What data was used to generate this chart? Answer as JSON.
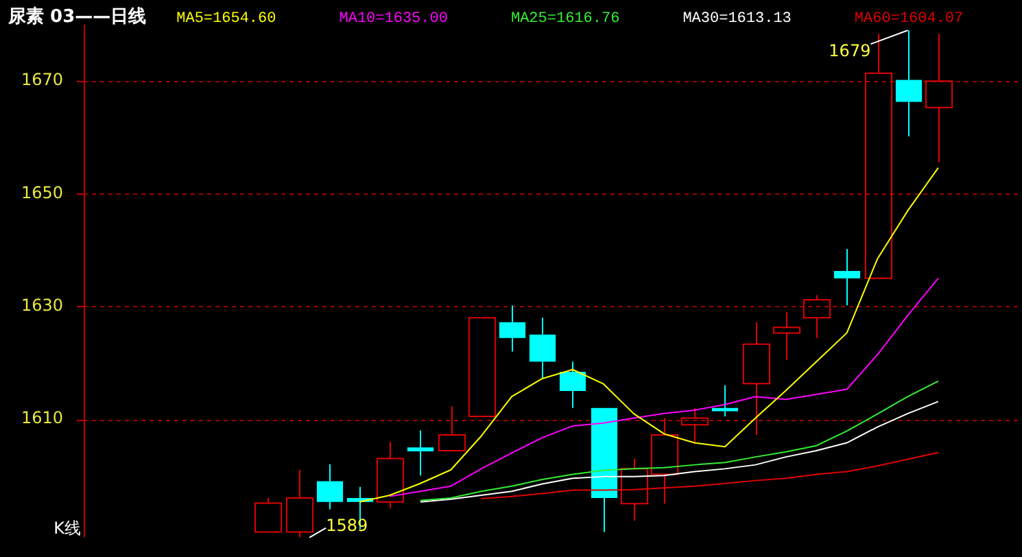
{
  "chart_data": {
    "type": "candlestick",
    "title": "尿素 03——日线",
    "categories": [
      null,
      null,
      null,
      null,
      null,
      null,
      null,
      null,
      null,
      null,
      null,
      null,
      null,
      null,
      null,
      null,
      null,
      null,
      null,
      null,
      null,
      null,
      null
    ],
    "ohlc": [
      [
        1590,
        1596,
        1590,
        1595.1
      ],
      [
        1590,
        1601,
        1589,
        1596
      ],
      [
        1599,
        1602,
        1594,
        1595.3
      ],
      [
        1596,
        1598,
        1590.5,
        1595.3
      ],
      [
        1595.3,
        1606,
        1594.2,
        1603
      ],
      [
        1605,
        1608,
        1600,
        1604.3
      ],
      [
        1604.4,
        1612.3,
        1604.4,
        1607.2
      ],
      [
        1610.5,
        1628,
        1610.5,
        1628
      ],
      [
        1627.2,
        1630.2,
        1622,
        1624.4
      ],
      [
        1625,
        1628,
        1617.2,
        1620.2
      ],
      [
        1618.4,
        1620.2,
        1612,
        1615
      ],
      [
        1612,
        1612,
        1590,
        1596
      ],
      [
        1595,
        1603,
        1592,
        1601.2
      ],
      [
        1600.2,
        1610.2,
        1595,
        1607.2
      ],
      [
        1609,
        1612,
        1605.6,
        1610.2
      ],
      [
        1612,
        1616,
        1610.5,
        1611.4
      ],
      [
        1616.3,
        1627.2,
        1607.2,
        1623.3
      ],
      [
        1625.3,
        1629,
        1620.5,
        1626.3
      ],
      [
        1628,
        1632,
        1624.4,
        1631.2
      ],
      [
        1636.3,
        1640.2,
        1630.2,
        1635
      ],
      [
        1635,
        1678.4,
        1635,
        1671.4
      ],
      [
        1670.2,
        1679,
        1660.2,
        1666.3
      ],
      [
        1665.3,
        1678.4,
        1655.6,
        1670
      ]
    ],
    "colors": [
      "#e00000",
      "#e00000",
      "#00ffff",
      "#00ffff",
      "#e00000",
      "#00ffff",
      "#e00000",
      "#e00000",
      "#00ffff",
      "#00ffff",
      "#00ffff",
      "#00ffff",
      "#e00000",
      "#e00000",
      "#e00000",
      "#00ffff",
      "#e00000",
      "#e00000",
      "#e00000",
      "#00ffff",
      "#e00000",
      "#00ffff",
      "#e00000"
    ],
    "series": [
      {
        "name": "MA5=1654.60",
        "type": "line",
        "color": "#ffff00",
        "values": [
          null,
          null,
          null,
          1595.3,
          1596.5,
          1598.6,
          1601,
          1607,
          1614,
          1617.2,
          1618.8,
          1616.3,
          1611,
          1607.4,
          1605.8,
          1605.1,
          1610.2,
          1615.1,
          1620.2,
          1625.3,
          1638.4,
          1647,
          1654.6
        ]
      },
      {
        "name": "MA10=1635.00",
        "type": "line",
        "color": "#ff00ff",
        "values": [
          null,
          null,
          null,
          null,
          1596.3,
          1597.2,
          1598.1,
          1601.2,
          1604,
          1606.7,
          1608.8,
          1609.3,
          1610.2,
          1611,
          1611.6,
          1612.6,
          1614,
          1613.5,
          1614.4,
          1615.3,
          1621.4,
          1628.4,
          1635
        ]
      },
      {
        "name": "MA25=1616.76",
        "type": "line",
        "color": "#33ee33",
        "values": [
          null,
          null,
          null,
          null,
          null,
          1595.6,
          1596,
          1597.2,
          1598.1,
          1599.3,
          1600.2,
          1600.9,
          1601.2,
          1601.4,
          1601.9,
          1602.3,
          1603.3,
          1604.2,
          1605.3,
          1607.9,
          1610.9,
          1614,
          1616.76
        ]
      },
      {
        "name": "MA30=1613.13",
        "type": "line",
        "color": "#ffffff",
        "values": [
          null,
          null,
          null,
          null,
          null,
          1595.3,
          1595.8,
          1596.5,
          1597.2,
          1598.5,
          1599.5,
          1599.8,
          1599.8,
          1600,
          1600.7,
          1601.2,
          1601.9,
          1603.3,
          1604.4,
          1605.8,
          1608.6,
          1611,
          1613.13
        ]
      },
      {
        "name": "MA60=1604.07",
        "type": "line",
        "color": "#e00000",
        "values": [
          null,
          null,
          null,
          null,
          null,
          null,
          null,
          1595.9,
          1596.3,
          1596.8,
          1597.4,
          1597.4,
          1597.5,
          1597.8,
          1598.1,
          1598.6,
          1599.1,
          1599.5,
          1600.2,
          1600.7,
          1601.7,
          1602.9,
          1604.07
        ]
      }
    ],
    "ylim": [
      1589,
      1680
    ],
    "yticks": [
      1610,
      1630,
      1650,
      1670
    ],
    "grid": "y",
    "legend": "top left",
    "tick_labels": "y",
    "annotations": [
      "K线",
      "1679",
      "1589"
    ]
  }
}
